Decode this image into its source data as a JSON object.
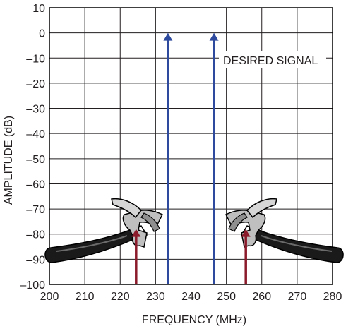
{
  "chart_data": {
    "type": "bar",
    "xlabel": "FREQUENCY (MHz)",
    "ylabel": "AMPLITUDE (dB)",
    "xlim": [
      200,
      280
    ],
    "ylim": [
      -100,
      10
    ],
    "x_ticks": [
      "200",
      "210",
      "220",
      "230",
      "240",
      "250",
      "260",
      "270",
      "280"
    ],
    "y_ticks": [
      "10",
      "0",
      "–10",
      "–20",
      "–30",
      "–40",
      "–50",
      "–60",
      "–70",
      "–80",
      "–90",
      "–100"
    ],
    "grid": true,
    "series": [
      {
        "name": "DESIRED SIGNAL",
        "color": "#2e4a9e",
        "x": [
          233.5,
          246.5
        ],
        "values": [
          0,
          0
        ]
      },
      {
        "color": "#8b1a2b",
        "x": [
          224.5,
          255.5
        ],
        "values": [
          -78,
          -78
        ]
      }
    ],
    "annotations": [
      {
        "text": "DESIRED SIGNAL"
      }
    ],
    "icons": [
      "hammer-icon",
      "hammer-icon"
    ]
  }
}
